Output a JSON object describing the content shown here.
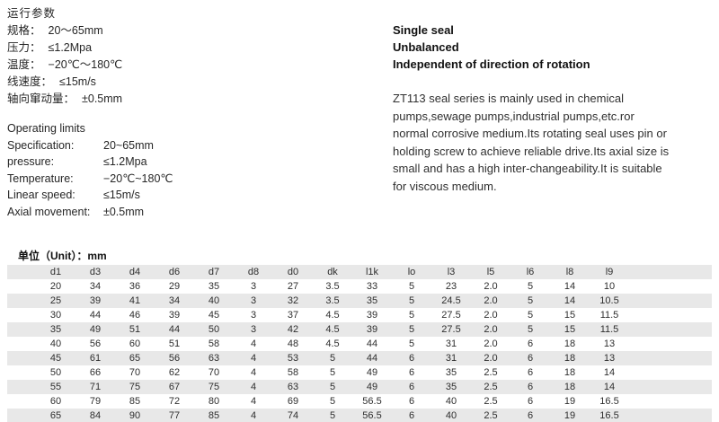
{
  "operating_params_cn": {
    "title": "运行参数",
    "items": [
      {
        "label": "规格：",
        "value": "20～65mm"
      },
      {
        "label": "压力：",
        "value": "≤1.2Mpa"
      },
      {
        "label": "温度：",
        "value": "−20℃～180℃"
      },
      {
        "label": "线速度：",
        "value": "≤15m/s"
      },
      {
        "label": "轴向窜动量：",
        "value": "±0.5mm"
      }
    ]
  },
  "operating_limits_en": {
    "title": "Operating limits",
    "items": [
      {
        "label": "Specification:",
        "value": "20~65mm"
      },
      {
        "label": "pressure:",
        "value": "≤1.2Mpa"
      },
      {
        "label": "Temperature:",
        "value": "−20℃~180℃"
      },
      {
        "label": "Linear speed:",
        "value": "≤15m/s"
      },
      {
        "label": "Axial movement:",
        "value": "±0.5mm"
      }
    ]
  },
  "product": {
    "features": [
      "Single seal",
      "Unbalanced",
      "Independent of direction of rotation"
    ],
    "description_lines": [
      "ZT113 seal series is mainly used in chemical",
      "pumps,sewage pumps,industrial pumps,etc.ror",
      "normal corrosive medium.Its rotating seal uses pin or",
      "holding screw to achieve reliable drive.Its axial size is",
      "small and has a high inter-changeability.It is suitable",
      "for viscous medium."
    ]
  },
  "table": {
    "unit_label": "单位（Unit）：mm",
    "columns": [
      "d1",
      "d3",
      "d4",
      "d6",
      "d7",
      "d8",
      "d0",
      "dk",
      "l1k",
      "lo",
      "l3",
      "l5",
      "l6",
      "l8",
      "l9"
    ],
    "rows": [
      [
        "20",
        "34",
        "36",
        "29",
        "35",
        "3",
        "27",
        "3.5",
        "33",
        "5",
        "23",
        "2.0",
        "5",
        "14",
        "10"
      ],
      [
        "25",
        "39",
        "41",
        "34",
        "40",
        "3",
        "32",
        "3.5",
        "35",
        "5",
        "24.5",
        "2.0",
        "5",
        "14",
        "10.5"
      ],
      [
        "30",
        "44",
        "46",
        "39",
        "45",
        "3",
        "37",
        "4.5",
        "39",
        "5",
        "27.5",
        "2.0",
        "5",
        "15",
        "11.5"
      ],
      [
        "35",
        "49",
        "51",
        "44",
        "50",
        "3",
        "42",
        "4.5",
        "39",
        "5",
        "27.5",
        "2.0",
        "5",
        "15",
        "11.5"
      ],
      [
        "40",
        "56",
        "60",
        "51",
        "58",
        "4",
        "48",
        "4.5",
        "44",
        "5",
        "31",
        "2.0",
        "6",
        "18",
        "13"
      ],
      [
        "45",
        "61",
        "65",
        "56",
        "63",
        "4",
        "53",
        "5",
        "44",
        "6",
        "31",
        "2.0",
        "6",
        "18",
        "13"
      ],
      [
        "50",
        "66",
        "70",
        "62",
        "70",
        "4",
        "58",
        "5",
        "49",
        "6",
        "35",
        "2.5",
        "6",
        "18",
        "14"
      ],
      [
        "55",
        "71",
        "75",
        "67",
        "75",
        "4",
        "63",
        "5",
        "49",
        "6",
        "35",
        "2.5",
        "6",
        "18",
        "14"
      ],
      [
        "60",
        "79",
        "85",
        "72",
        "80",
        "4",
        "69",
        "5",
        "56.5",
        "6",
        "40",
        "2.5",
        "6",
        "19",
        "16.5"
      ],
      [
        "65",
        "84",
        "90",
        "77",
        "85",
        "4",
        "74",
        "5",
        "56.5",
        "6",
        "40",
        "2.5",
        "6",
        "19",
        "16.5"
      ]
    ],
    "stripe_color": "#e8e8e8"
  }
}
